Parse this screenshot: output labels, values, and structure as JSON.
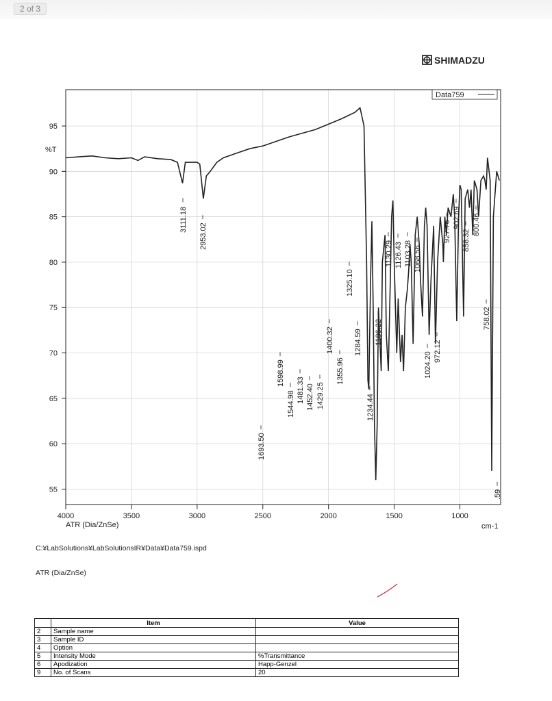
{
  "viewer": {
    "page_indicator": "2 of 3"
  },
  "header": {
    "brand": "SHIMADZU"
  },
  "chart_data": {
    "type": "line",
    "y_label": "%T",
    "x_label": "ATR (Dia/ZnSe)",
    "x_unit": "cm-1",
    "xlim": [
      4000,
      690
    ],
    "ylim": [
      53.3,
      99
    ],
    "xticks": [
      4000,
      3500,
      3000,
      2500,
      2000,
      1500,
      1000
    ],
    "yticks": [
      55,
      60,
      65,
      70,
      75,
      80,
      85,
      90,
      95
    ],
    "grid": true,
    "legend": "top-right",
    "series": [
      {
        "name": "Data759",
        "color": "#222222",
        "x": [
          4000,
          3900,
          3800,
          3700,
          3600,
          3500,
          3450,
          3400,
          3300,
          3200,
          3150,
          3111,
          3090,
          3000,
          2980,
          2953,
          2930,
          2900,
          2850,
          2800,
          2700,
          2600,
          2500,
          2400,
          2300,
          2200,
          2100,
          2000,
          1900,
          1800,
          1760,
          1730,
          1710,
          1700,
          1693.5,
          1680,
          1670,
          1660,
          1650,
          1640,
          1630,
          1620,
          1599,
          1590,
          1570,
          1560,
          1545,
          1530,
          1520,
          1510,
          1500,
          1481,
          1470,
          1452,
          1440,
          1429,
          1415,
          1400,
          1390,
          1380,
          1370,
          1356,
          1340,
          1325,
          1310,
          1300,
          1285,
          1270,
          1260,
          1250,
          1234,
          1220,
          1200,
          1186,
          1170,
          1150,
          1130,
          1126,
          1115,
          1103,
          1090,
          1068,
          1050,
          1040,
          1024,
          1010,
          1000,
          990,
          972,
          960,
          940,
          927,
          915,
          902,
          890,
          870,
          858,
          840,
          820,
          810,
          800,
          790,
          770,
          758,
          745,
          720,
          700
        ],
        "values": [
          91.5,
          91.6,
          91.7,
          91.5,
          91.4,
          91.5,
          91.2,
          91.6,
          91.4,
          91.3,
          91.0,
          88.7,
          91.0,
          91.0,
          90.8,
          87.0,
          89.5,
          90.0,
          91.0,
          91.5,
          92.0,
          92.5,
          92.8,
          93.3,
          93.8,
          94.2,
          94.6,
          95.2,
          95.8,
          96.5,
          97.0,
          95.0,
          80,
          67,
          66,
          78,
          84.5,
          75,
          62,
          56,
          62,
          75,
          68,
          80,
          83,
          72,
          68,
          78,
          85,
          86.8,
          80,
          70,
          76,
          69,
          72,
          68,
          75,
          77,
          79,
          82,
          80,
          71,
          83,
          85,
          82,
          78,
          74,
          84,
          86,
          84,
          72,
          78,
          84,
          71,
          80,
          85,
          82,
          80,
          85,
          83,
          86,
          85,
          87.5,
          85,
          73.5,
          85,
          88.5,
          88,
          74,
          87,
          88,
          86,
          88,
          83,
          89,
          88,
          85,
          89,
          89.5,
          89,
          88,
          91.5,
          89,
          57,
          85,
          90,
          89
        ]
      }
    ],
    "peak_labels": [
      "3111.18",
      "2953.02",
      "1325.10",
      "1400.32",
      "1284.59",
      "1186.22",
      "1130.29",
      "1126.43",
      "1103.28",
      "1068.56",
      "1598.99",
      "1544.98",
      "1481.33",
      "1452.40",
      "1429.25",
      "1355.96",
      "1234.44",
      "1693.50",
      "1024.20",
      "972.12",
      "927.76",
      "902.69",
      "858.32",
      "800.46",
      "758.02",
      ".59"
    ]
  },
  "file_path": "C:¥LabSolutions¥LabSolutionsIR¥Data¥Data759.ispd",
  "method": "ATR (Dia/ZnSe)",
  "table": {
    "headers": [
      "Item",
      "Value"
    ],
    "rows": [
      [
        "2",
        "Sample name"
      ],
      [
        "3",
        "Sample ID"
      ],
      [
        "4",
        "Option"
      ],
      [
        "5",
        "Intensity Mode",
        "%Transmittance"
      ],
      [
        "6",
        "Apodization",
        "Happ-Genzel"
      ],
      [
        "9",
        "No. of Scans",
        "20"
      ]
    ]
  }
}
